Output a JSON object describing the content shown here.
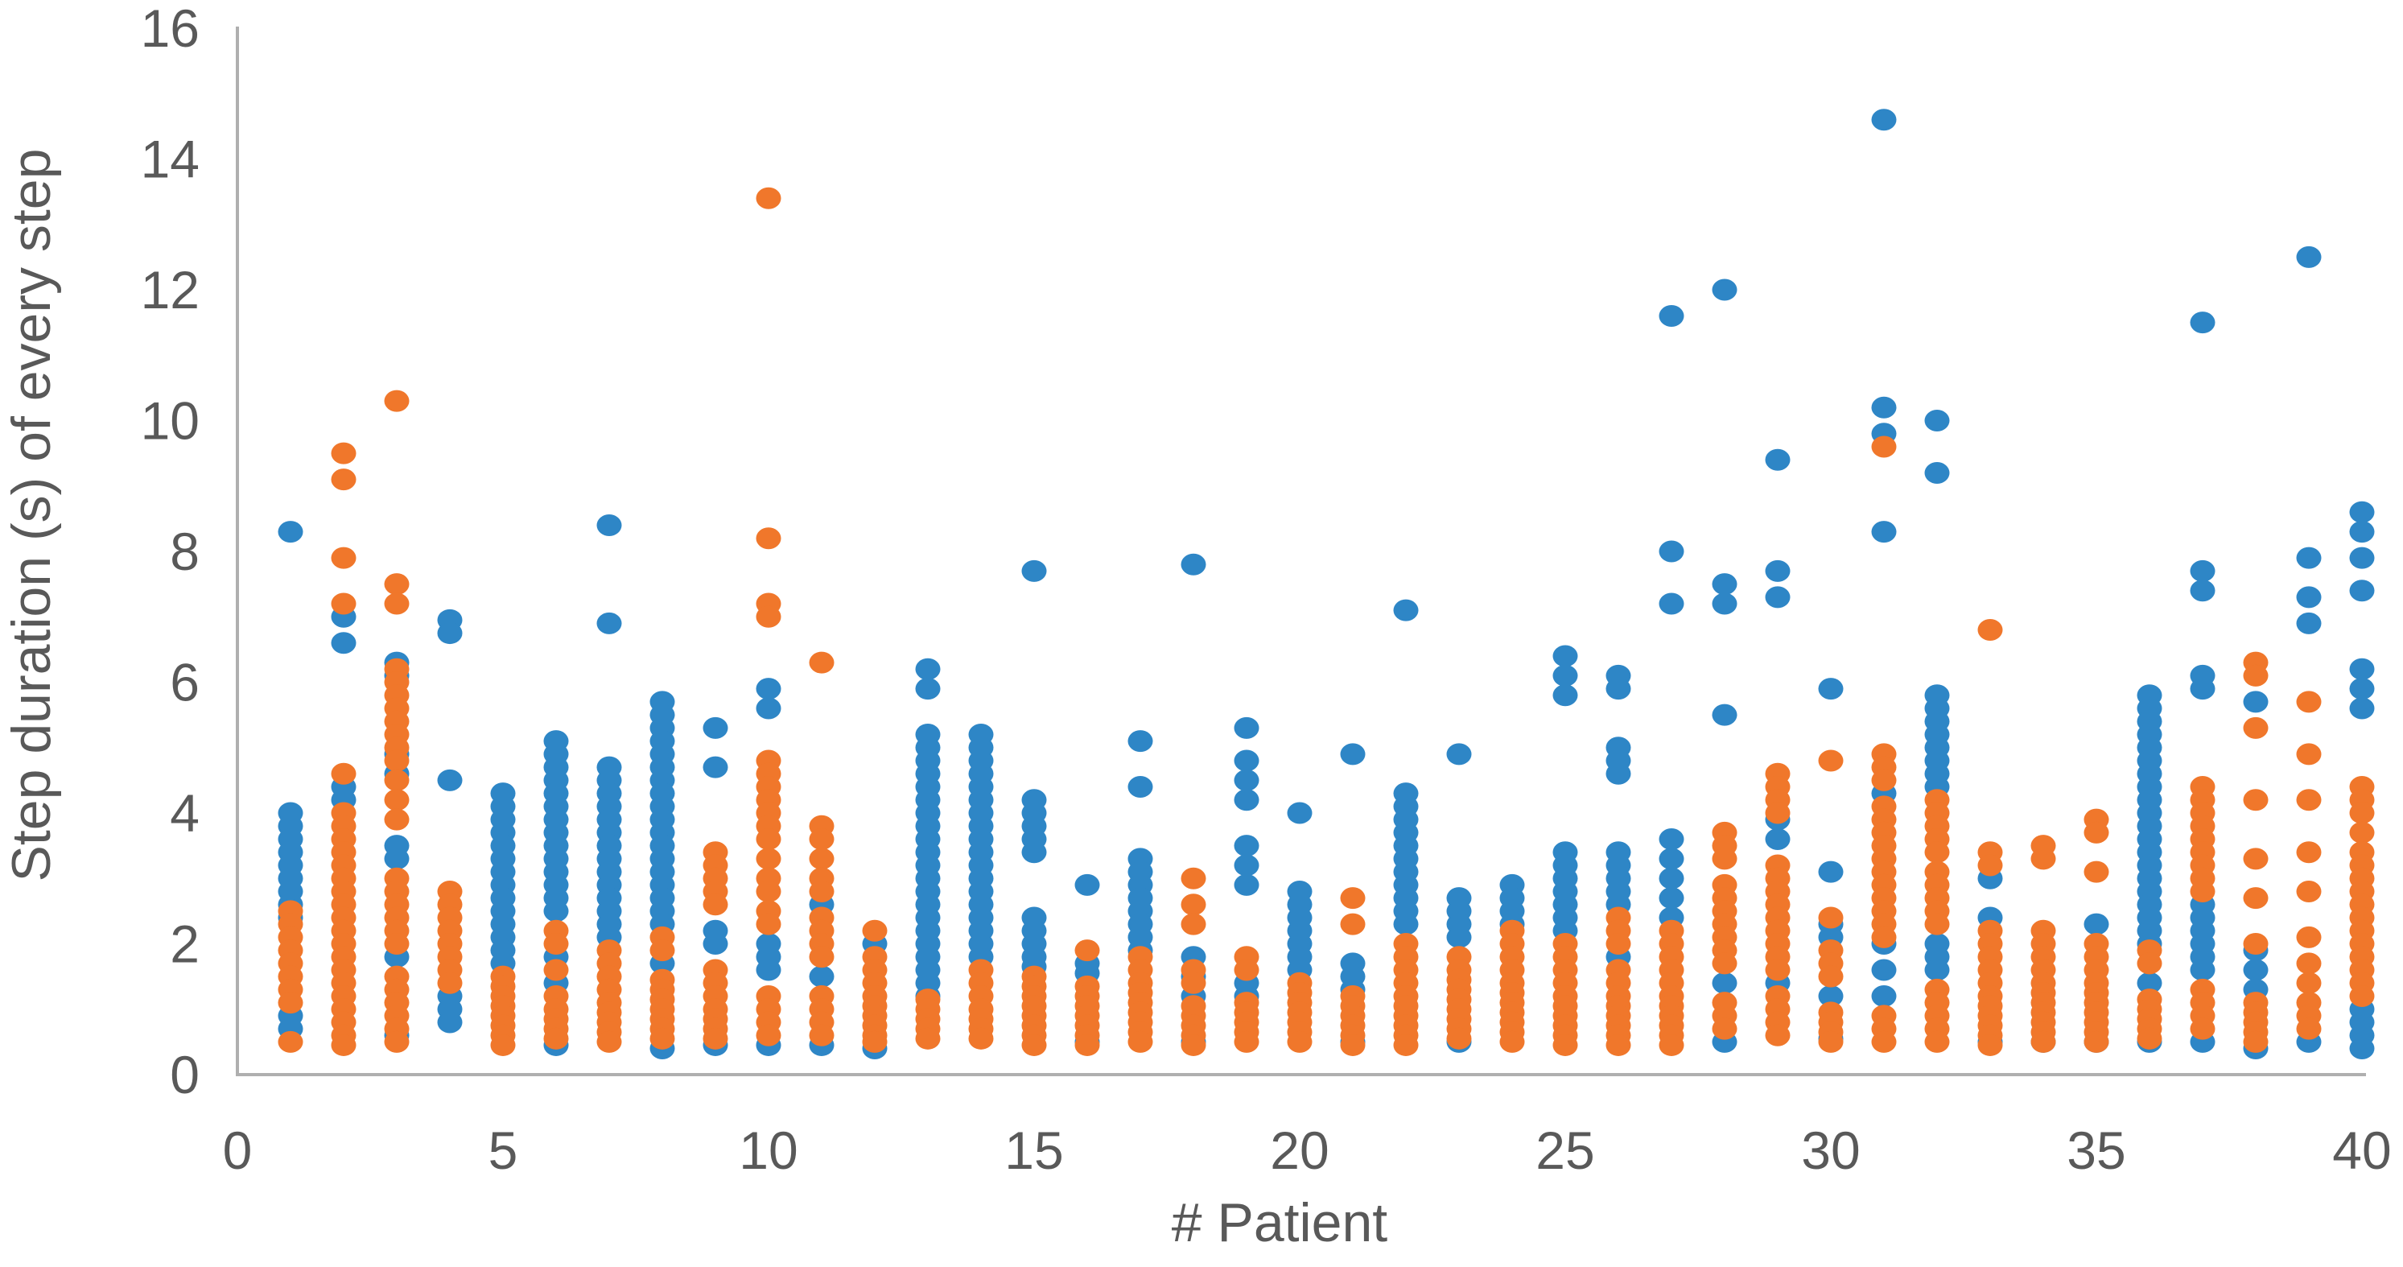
{
  "style": {
    "background": "#FFFFFF",
    "text_color": "#595959",
    "axis_line_color": "#AFAFAF",
    "blue": "#2E86C6",
    "orange": "#F0772B"
  },
  "chart_data": {
    "type": "scatter",
    "title": "",
    "xlabel": "# Patient",
    "ylabel": "Step duration (s) of every step",
    "xlim": [
      0,
      40
    ],
    "ylim": [
      0,
      16
    ],
    "x_ticks": [
      0,
      5,
      10,
      15,
      20,
      25,
      30,
      35,
      40
    ],
    "y_ticks": [
      0,
      2,
      4,
      6,
      8,
      10,
      12,
      14,
      16
    ],
    "grid": false,
    "legend": "none",
    "marker": {
      "rx": 15.5,
      "ry": 13.5
    },
    "series": [
      {
        "name": "blue-series",
        "color": "#2E86C6",
        "points_by_patient": {
          "1": [
            8.3,
            4.0,
            3.8,
            3.6,
            3.4,
            3.2,
            3.0,
            2.8,
            2.6,
            2.4,
            0.9,
            0.7
          ],
          "2": [
            7.0,
            6.6,
            4.4,
            4.2
          ],
          "3": [
            6.3,
            6.1,
            4.9,
            4.6,
            3.5,
            3.3,
            1.8,
            0.6
          ],
          "4": [
            6.95,
            6.75,
            4.5,
            1.2,
            1.0,
            0.8
          ],
          "5": [
            4.3,
            4.1,
            3.9,
            3.7,
            3.5,
            3.3,
            3.1,
            2.9,
            2.7,
            2.5,
            2.3,
            2.1,
            1.9,
            1.7
          ],
          "6": [
            5.1,
            4.9,
            4.7,
            4.5,
            4.3,
            4.1,
            3.9,
            3.7,
            3.5,
            3.3,
            3.1,
            2.9,
            2.7,
            2.5,
            1.8,
            1.4,
            0.45
          ],
          "7": [
            8.4,
            6.9,
            4.7,
            4.5,
            4.3,
            4.1,
            3.9,
            3.7,
            3.5,
            3.3,
            3.1,
            2.9,
            2.7,
            2.5,
            2.3,
            2.1
          ],
          "8": [
            5.7,
            5.5,
            5.3,
            5.1,
            4.9,
            4.7,
            4.5,
            4.3,
            4.1,
            3.9,
            3.7,
            3.5,
            3.3,
            3.1,
            2.9,
            2.7,
            2.5,
            2.3,
            1.7,
            0.4
          ],
          "9": [
            5.3,
            4.7,
            2.2,
            2.0,
            0.45
          ],
          "10": [
            5.9,
            5.6,
            2.0,
            1.8,
            1.6,
            0.45
          ],
          "11": [
            2.6,
            1.5,
            0.45
          ],
          "12": [
            2.0,
            0.4
          ],
          "13": [
            6.2,
            5.9,
            5.2,
            5.0,
            4.8,
            4.6,
            4.4,
            4.2,
            4.0,
            3.8,
            3.6,
            3.4,
            3.2,
            3.0,
            2.8,
            2.6,
            2.4,
            2.2,
            2.0,
            1.8,
            1.6,
            1.4,
            1.2
          ],
          "14": [
            5.2,
            5.0,
            4.8,
            4.6,
            4.4,
            4.2,
            4.0,
            3.8,
            3.6,
            3.4,
            3.2,
            3.0,
            2.8,
            2.6,
            2.4,
            2.2,
            2.0,
            1.8
          ],
          "15": [
            7.7,
            4.2,
            4.0,
            3.8,
            3.6,
            3.4,
            2.4,
            2.2,
            2.0,
            1.8,
            1.65
          ],
          "16": [
            2.9,
            1.7,
            1.55,
            0.5
          ],
          "17": [
            5.1,
            4.4,
            3.3,
            3.1,
            2.9,
            2.7,
            2.5,
            2.3,
            2.1,
            1.9
          ],
          "18": [
            7.8,
            1.8,
            1.5,
            1.2,
            0.5
          ],
          "19": [
            5.3,
            4.8,
            4.5,
            4.2,
            3.5,
            3.2,
            2.9,
            1.4,
            1.2
          ],
          "20": [
            4.0,
            2.8,
            2.6,
            2.4,
            2.2,
            2.0,
            1.8,
            1.6
          ],
          "21": [
            4.9,
            1.7,
            1.5,
            1.3,
            0.5
          ],
          "22": [
            7.1,
            4.3,
            4.1,
            3.9,
            3.7,
            3.5,
            3.3,
            3.1,
            2.9,
            2.7,
            2.5,
            2.3
          ],
          "23": [
            4.9,
            2.7,
            2.5,
            2.3,
            2.1,
            0.5
          ],
          "24": [
            2.9,
            2.7,
            2.5,
            2.3
          ],
          "25": [
            6.4,
            6.1,
            5.8,
            3.4,
            3.2,
            3.0,
            2.8,
            2.6,
            2.4,
            2.2
          ],
          "26": [
            6.1,
            5.9,
            5.0,
            4.8,
            4.6,
            3.4,
            3.2,
            3.0,
            2.8,
            2.6,
            1.8
          ],
          "27": [
            11.6,
            8.0,
            7.2,
            3.6,
            3.3,
            3.0,
            2.7,
            2.4
          ],
          "28": [
            12.0,
            7.5,
            7.2,
            5.5,
            1.4,
            0.5
          ],
          "29": [
            9.4,
            7.7,
            7.3,
            3.9,
            3.6,
            1.4
          ],
          "30": [
            5.9,
            3.1,
            2.3,
            2.1,
            1.2,
            0.55
          ],
          "31": [
            14.6,
            10.2,
            9.8,
            8.3,
            4.3,
            2.0,
            1.6,
            1.2
          ],
          "32": [
            10.0,
            9.2,
            5.8,
            5.6,
            5.4,
            5.2,
            5.0,
            4.8,
            4.6,
            4.4,
            2.0,
            1.8,
            1.6
          ],
          "33": [
            3.0,
            2.4,
            0.5
          ],
          "34": [
            0.5
          ],
          "35": [
            2.3,
            0.5
          ],
          "36": [
            5.8,
            5.6,
            5.4,
            5.2,
            5.0,
            4.8,
            4.6,
            4.4,
            4.2,
            4.0,
            3.8,
            3.6,
            3.4,
            3.2,
            3.0,
            2.8,
            2.6,
            2.4,
            2.2,
            2.0,
            1.4,
            0.5
          ],
          "37": [
            11.5,
            7.7,
            7.4,
            6.1,
            5.9,
            2.6,
            2.4,
            2.2,
            2.0,
            1.8,
            1.6,
            0.5
          ],
          "38": [
            5.7,
            1.9,
            1.6,
            1.3,
            0.4
          ],
          "39": [
            12.5,
            7.9,
            7.3,
            6.9,
            0.5
          ],
          "40": [
            8.6,
            8.3,
            7.9,
            7.4,
            6.2,
            5.9,
            5.6,
            1.0,
            0.8,
            0.6,
            0.4
          ]
        }
      },
      {
        "name": "orange-series",
        "color": "#F0772B",
        "points_by_patient": {
          "1": [
            2.5,
            2.3,
            2.1,
            1.9,
            1.7,
            1.5,
            1.3,
            1.1,
            0.5
          ],
          "2": [
            9.5,
            9.1,
            7.9,
            7.2,
            4.6,
            4.0,
            3.8,
            3.6,
            3.4,
            3.2,
            3.0,
            2.8,
            2.6,
            2.4,
            2.2,
            2.0,
            1.8,
            1.6,
            1.4,
            1.2,
            1.0,
            0.8,
            0.6,
            0.45
          ],
          "3": [
            10.3,
            7.5,
            7.2,
            6.2,
            6.0,
            5.8,
            5.6,
            5.4,
            5.2,
            5.0,
            4.8,
            4.5,
            4.2,
            3.9,
            3.0,
            2.8,
            2.6,
            2.4,
            2.2,
            2.0,
            1.5,
            1.3,
            1.1,
            0.9,
            0.7,
            0.5
          ],
          "4": [
            2.8,
            2.6,
            2.4,
            2.2,
            2.0,
            1.8,
            1.6,
            1.4
          ],
          "5": [
            1.5,
            1.35,
            1.2,
            1.05,
            0.9,
            0.75,
            0.6,
            0.45
          ],
          "6": [
            2.2,
            2.0,
            1.6,
            1.2,
            1.0,
            0.85,
            0.7,
            0.55
          ],
          "7": [
            1.9,
            1.7,
            1.5,
            1.3,
            1.1,
            0.95,
            0.8,
            0.65,
            0.5
          ],
          "8": [
            2.1,
            1.9,
            1.45,
            1.3,
            1.15,
            1.0,
            0.85,
            0.7,
            0.55
          ],
          "9": [
            3.4,
            3.2,
            3.0,
            2.8,
            2.6,
            1.6,
            1.4,
            1.2,
            1.0,
            0.85,
            0.7,
            0.55
          ],
          "10": [
            13.4,
            8.2,
            7.2,
            7.0,
            4.8,
            4.6,
            4.4,
            4.2,
            4.0,
            3.8,
            3.6,
            3.3,
            3.0,
            2.8,
            2.5,
            2.3,
            1.2,
            1.0,
            0.8,
            0.6
          ],
          "11": [
            6.3,
            3.8,
            3.6,
            3.3,
            3.0,
            2.8,
            2.4,
            2.2,
            2.0,
            1.8,
            1.2,
            1.0,
            0.8,
            0.6
          ],
          "12": [
            2.2,
            1.8,
            1.6,
            1.4,
            1.2,
            1.05,
            0.9,
            0.75,
            0.6,
            0.5
          ],
          "13": [
            1.15,
            1.0,
            0.85,
            0.7,
            0.55
          ],
          "14": [
            1.6,
            1.4,
            1.2,
            1.0,
            0.85,
            0.7,
            0.55
          ],
          "15": [
            1.5,
            1.35,
            1.2,
            1.05,
            0.9,
            0.75,
            0.6,
            0.45
          ],
          "16": [
            1.9,
            1.35,
            1.2,
            1.05,
            0.9,
            0.75,
            0.6,
            0.45
          ],
          "17": [
            1.8,
            1.6,
            1.4,
            1.25,
            1.1,
            0.95,
            0.8,
            0.65,
            0.5
          ],
          "18": [
            3.0,
            2.6,
            2.3,
            1.6,
            1.4,
            1.05,
            0.9,
            0.75,
            0.6,
            0.45
          ],
          "19": [
            1.8,
            1.6,
            1.1,
            0.95,
            0.8,
            0.65,
            0.5
          ],
          "20": [
            1.4,
            1.25,
            1.1,
            0.95,
            0.8,
            0.65,
            0.5
          ],
          "21": [
            2.7,
            2.3,
            1.2,
            1.05,
            0.9,
            0.75,
            0.6,
            0.45
          ],
          "22": [
            2.0,
            1.8,
            1.6,
            1.4,
            1.2,
            1.05,
            0.9,
            0.75,
            0.6,
            0.45
          ],
          "23": [
            1.8,
            1.6,
            1.45,
            1.3,
            1.15,
            1.0,
            0.85,
            0.7,
            0.55
          ],
          "24": [
            2.2,
            2.0,
            1.8,
            1.6,
            1.4,
            1.25,
            1.1,
            0.95,
            0.8,
            0.65,
            0.5
          ],
          "25": [
            2.0,
            1.8,
            1.6,
            1.4,
            1.2,
            1.05,
            0.9,
            0.75,
            0.6,
            0.45
          ],
          "26": [
            2.4,
            2.2,
            2.0,
            1.6,
            1.4,
            1.2,
            1.05,
            0.9,
            0.75,
            0.6,
            0.45
          ],
          "27": [
            2.2,
            2.0,
            1.8,
            1.6,
            1.4,
            1.2,
            1.05,
            0.9,
            0.75,
            0.6,
            0.45
          ],
          "28": [
            3.7,
            3.5,
            3.3,
            2.9,
            2.7,
            2.5,
            2.3,
            2.1,
            1.9,
            1.7,
            1.1,
            0.9,
            0.7
          ],
          "29": [
            4.6,
            4.4,
            4.2,
            4.0,
            3.2,
            3.0,
            2.8,
            2.6,
            2.4,
            2.2,
            2.0,
            1.8,
            1.6,
            1.2,
            1.0,
            0.8,
            0.6
          ],
          "30": [
            4.8,
            2.4,
            1.9,
            1.7,
            1.5,
            0.95,
            0.8,
            0.65,
            0.5
          ],
          "31": [
            9.6,
            4.9,
            4.7,
            4.5,
            4.1,
            3.9,
            3.7,
            3.5,
            3.3,
            3.1,
            2.9,
            2.7,
            2.5,
            2.3,
            2.1,
            0.9,
            0.7,
            0.5
          ],
          "32": [
            4.2,
            4.0,
            3.8,
            3.6,
            3.4,
            3.1,
            2.9,
            2.7,
            2.5,
            2.3,
            1.3,
            1.1,
            0.9,
            0.7,
            0.5
          ],
          "33": [
            6.8,
            3.4,
            3.2,
            2.2,
            2.0,
            1.8,
            1.6,
            1.4,
            1.2,
            1.05,
            0.9,
            0.75,
            0.6,
            0.45
          ],
          "34": [
            3.5,
            3.3,
            2.2,
            2.0,
            1.8,
            1.6,
            1.4,
            1.25,
            1.1,
            0.95,
            0.8,
            0.65,
            0.5
          ],
          "35": [
            3.9,
            3.7,
            3.1,
            2.0,
            1.8,
            1.6,
            1.4,
            1.25,
            1.1,
            0.95,
            0.8,
            0.65,
            0.5
          ],
          "36": [
            1.9,
            1.7,
            1.15,
            1.0,
            0.85,
            0.7,
            0.55
          ],
          "37": [
            4.4,
            4.2,
            4.0,
            3.8,
            3.6,
            3.4,
            3.2,
            3.0,
            2.8,
            1.3,
            1.1,
            0.9,
            0.7
          ],
          "38": [
            6.3,
            6.1,
            5.3,
            4.2,
            3.3,
            2.7,
            2.0,
            1.1,
            0.95,
            0.8,
            0.65,
            0.5
          ],
          "39": [
            5.7,
            4.9,
            4.2,
            3.4,
            2.8,
            2.1,
            1.7,
            1.4,
            1.1,
            0.9,
            0.7
          ],
          "40": [
            4.4,
            4.2,
            4.0,
            3.7,
            3.4,
            3.2,
            3.0,
            2.8,
            2.6,
            2.4,
            2.2,
            2.0,
            1.8,
            1.6,
            1.4,
            1.2
          ]
        }
      }
    ]
  }
}
